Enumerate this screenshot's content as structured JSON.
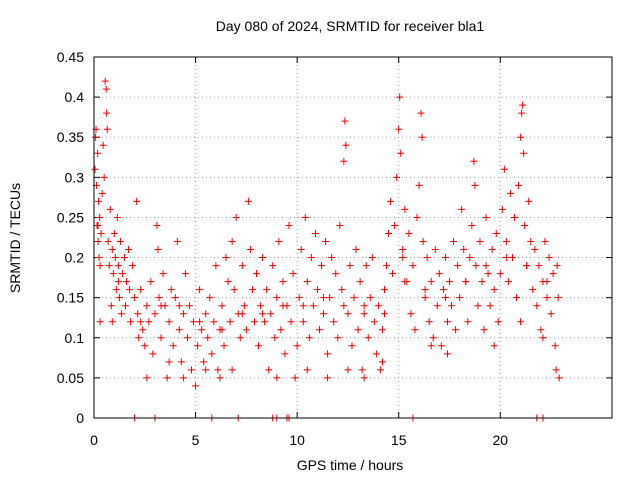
{
  "chart_data": {
    "type": "scatter",
    "title": "Day 080 of 2024, SRMTID for receiver bla1",
    "xlabel": "GPS time / hours",
    "ylabel": "SRMTID / TECUs",
    "xlim": [
      0,
      25.5
    ],
    "ylim": [
      0,
      0.45
    ],
    "x_ticks": [
      0,
      5,
      10,
      15,
      20
    ],
    "x_tick_labels": [
      "0",
      "5",
      "10",
      "15",
      "20"
    ],
    "y_ticks": [
      0,
      0.05,
      0.1,
      0.15,
      0.2,
      0.25,
      0.3,
      0.35,
      0.4,
      0.45
    ],
    "y_tick_labels": [
      "0",
      "0.05",
      "0.1",
      "0.15",
      "0.2",
      "0.25",
      "0.3",
      "0.35",
      "0.4",
      "0.45"
    ],
    "grid": true,
    "marker": "+",
    "color": "#ee0000",
    "series": [
      {
        "name": "SRMTID",
        "points": [
          [
            0.05,
            0.31
          ],
          [
            0.08,
            0.35
          ],
          [
            0.1,
            0.36
          ],
          [
            0.12,
            0.29
          ],
          [
            0.15,
            0.24
          ],
          [
            0.18,
            0.33
          ],
          [
            0.2,
            0.22
          ],
          [
            0.22,
            0.27
          ],
          [
            0.25,
            0.2
          ],
          [
            0.28,
            0.25
          ],
          [
            0.3,
            0.19
          ],
          [
            0.35,
            0.23
          ],
          [
            0.4,
            0.28
          ],
          [
            0.45,
            0.34
          ],
          [
            0.5,
            0.3
          ],
          [
            0.55,
            0.42
          ],
          [
            0.6,
            0.41
          ],
          [
            0.62,
            0.38
          ],
          [
            0.65,
            0.36
          ],
          [
            0.7,
            0.22
          ],
          [
            0.75,
            0.19
          ],
          [
            0.8,
            0.26
          ],
          [
            0.85,
            0.14
          ],
          [
            0.9,
            0.21
          ],
          [
            0.95,
            0.18
          ],
          [
            1.0,
            0.23
          ],
          [
            1.05,
            0.2
          ],
          [
            1.1,
            0.16
          ],
          [
            1.15,
            0.25
          ],
          [
            1.2,
            0.19
          ],
          [
            1.25,
            0.15
          ],
          [
            1.3,
            0.22
          ],
          [
            1.35,
            0.13
          ],
          [
            1.4,
            0.18
          ],
          [
            1.5,
            0.2
          ],
          [
            1.55,
            0.14
          ],
          [
            1.6,
            0.17
          ],
          [
            1.7,
            0.21
          ],
          [
            1.75,
            0.16
          ],
          [
            1.8,
            0.12
          ],
          [
            1.9,
            0.19
          ],
          [
            2.0,
            0.15
          ],
          [
            2.1,
            0.27
          ],
          [
            2.15,
            0.13
          ],
          [
            2.2,
            0.1
          ],
          [
            2.3,
            0.16
          ],
          [
            2.4,
            0.11
          ],
          [
            2.5,
            0.09
          ],
          [
            2.6,
            0.14
          ],
          [
            2.7,
            0.12
          ],
          [
            2.8,
            0.17
          ],
          [
            2.9,
            0.08
          ],
          [
            3.0,
            0.13
          ],
          [
            3.1,
            0.24
          ],
          [
            3.15,
            0.21
          ],
          [
            3.2,
            0.15
          ],
          [
            3.3,
            0.1
          ],
          [
            3.4,
            0.18
          ],
          [
            3.5,
            0.14
          ],
          [
            3.6,
            0.05
          ],
          [
            3.7,
            0.12
          ],
          [
            3.8,
            0.16
          ],
          [
            3.9,
            0.09
          ],
          [
            4.0,
            0.15
          ],
          [
            4.1,
            0.22
          ],
          [
            4.2,
            0.11
          ],
          [
            4.3,
            0.07
          ],
          [
            4.4,
            0.13
          ],
          [
            4.5,
            0.18
          ],
          [
            4.6,
            0.1
          ],
          [
            4.7,
            0.14
          ],
          [
            4.8,
            0.06
          ],
          [
            4.9,
            0.12
          ],
          [
            5.0,
            0.04
          ],
          [
            5.1,
            0.09
          ],
          [
            5.2,
            0.16
          ],
          [
            5.3,
            0.11
          ],
          [
            5.4,
            0.07
          ],
          [
            5.5,
            0.13
          ],
          [
            5.6,
            0.1
          ],
          [
            5.7,
            0.15
          ],
          [
            5.8,
            0.08
          ],
          [
            5.9,
            0.12
          ],
          [
            6.0,
            0.19
          ],
          [
            6.1,
            0.06
          ],
          [
            6.2,
            0.11
          ],
          [
            6.3,
            0.14
          ],
          [
            6.4,
            0.09
          ],
          [
            6.5,
            0.2
          ],
          [
            6.6,
            0.17
          ],
          [
            6.7,
            0.12
          ],
          [
            6.8,
            0.22
          ],
          [
            6.9,
            0.16
          ],
          [
            7.0,
            0.25
          ],
          [
            7.1,
            0.13
          ],
          [
            7.2,
            0.1
          ],
          [
            7.3,
            0.19
          ],
          [
            7.4,
            0.14
          ],
          [
            7.5,
            0.11
          ],
          [
            7.6,
            0.27
          ],
          [
            7.7,
            0.21
          ],
          [
            7.8,
            0.16
          ],
          [
            7.9,
            0.12
          ],
          [
            8.0,
            0.18
          ],
          [
            8.1,
            0.09
          ],
          [
            8.2,
            0.14
          ],
          [
            8.3,
            0.2
          ],
          [
            8.4,
            0.12
          ],
          [
            8.5,
            0.16
          ],
          [
            8.6,
            0.06
          ],
          [
            8.7,
            0.13
          ],
          [
            8.8,
            0.19
          ],
          [
            8.9,
            0.1
          ],
          [
            9.0,
            0.15
          ],
          [
            9.1,
            0.22
          ],
          [
            9.2,
            0.11
          ],
          [
            9.3,
            0.17
          ],
          [
            9.4,
            0.08
          ],
          [
            9.5,
            0.14
          ],
          [
            9.6,
            0.24
          ],
          [
            9.7,
            0.12
          ],
          [
            9.8,
            0.18
          ],
          [
            9.9,
            0.05
          ],
          [
            10.0,
            0.09
          ],
          [
            10.1,
            0.15
          ],
          [
            10.2,
            0.21
          ],
          [
            10.3,
            0.12
          ],
          [
            10.4,
            0.25
          ],
          [
            10.5,
            0.17
          ],
          [
            10.6,
            0.1
          ],
          [
            10.7,
            0.2
          ],
          [
            10.8,
            0.14
          ],
          [
            10.9,
            0.23
          ],
          [
            11.0,
            0.16
          ],
          [
            11.1,
            0.11
          ],
          [
            11.2,
            0.19
          ],
          [
            11.3,
            0.13
          ],
          [
            11.4,
            0.22
          ],
          [
            11.5,
            0.08
          ],
          [
            11.6,
            0.15
          ],
          [
            11.7,
            0.2
          ],
          [
            11.8,
            0.12
          ],
          [
            11.9,
            0.18
          ],
          [
            12.0,
            0.1
          ],
          [
            12.1,
            0.24
          ],
          [
            12.2,
            0.16
          ],
          [
            12.3,
            0.32
          ],
          [
            12.35,
            0.37
          ],
          [
            12.4,
            0.34
          ],
          [
            12.5,
            0.13
          ],
          [
            12.6,
            0.19
          ],
          [
            12.7,
            0.09
          ],
          [
            12.8,
            0.15
          ],
          [
            12.9,
            0.21
          ],
          [
            13.0,
            0.11
          ],
          [
            13.1,
            0.17
          ],
          [
            13.2,
            0.06
          ],
          [
            13.3,
            0.13
          ],
          [
            13.4,
            0.19
          ],
          [
            13.5,
            0.1
          ],
          [
            13.6,
            0.15
          ],
          [
            13.7,
            0.2
          ],
          [
            13.8,
            0.12
          ],
          [
            13.9,
            0.08
          ],
          [
            14.0,
            0.14
          ],
          [
            14.1,
            0.06
          ],
          [
            14.2,
            0.11
          ],
          [
            14.3,
            0.16
          ],
          [
            14.4,
            0.19
          ],
          [
            14.5,
            0.23
          ],
          [
            14.6,
            0.27
          ],
          [
            14.7,
            0.18
          ],
          [
            14.8,
            0.24
          ],
          [
            14.9,
            0.3
          ],
          [
            15.0,
            0.36
          ],
          [
            15.05,
            0.4
          ],
          [
            15.1,
            0.33
          ],
          [
            15.2,
            0.21
          ],
          [
            15.3,
            0.26
          ],
          [
            15.4,
            0.17
          ],
          [
            15.5,
            0.23
          ],
          [
            15.6,
            0.13
          ],
          [
            15.7,
            0.19
          ],
          [
            15.8,
            0.11
          ],
          [
            15.9,
            0.25
          ],
          [
            16.0,
            0.29
          ],
          [
            16.1,
            0.38
          ],
          [
            16.15,
            0.35
          ],
          [
            16.2,
            0.22
          ],
          [
            16.3,
            0.15
          ],
          [
            16.4,
            0.2
          ],
          [
            16.5,
            0.12
          ],
          [
            16.6,
            0.17
          ],
          [
            16.7,
            0.1
          ],
          [
            16.8,
            0.21
          ],
          [
            16.9,
            0.14
          ],
          [
            17.0,
            0.18
          ],
          [
            17.1,
            0.09
          ],
          [
            17.2,
            0.16
          ],
          [
            17.3,
            0.2
          ],
          [
            17.4,
            0.12
          ],
          [
            17.5,
            0.17
          ],
          [
            17.6,
            0.14
          ],
          [
            17.7,
            0.22
          ],
          [
            17.8,
            0.11
          ],
          [
            17.9,
            0.19
          ],
          [
            18.0,
            0.15
          ],
          [
            18.1,
            0.26
          ],
          [
            18.2,
            0.21
          ],
          [
            18.3,
            0.17
          ],
          [
            18.4,
            0.12
          ],
          [
            18.5,
            0.2
          ],
          [
            18.6,
            0.24
          ],
          [
            18.7,
            0.32
          ],
          [
            18.75,
            0.29
          ],
          [
            18.8,
            0.19
          ],
          [
            18.9,
            0.14
          ],
          [
            19.0,
            0.22
          ],
          [
            19.1,
            0.17
          ],
          [
            19.2,
            0.11
          ],
          [
            19.3,
            0.25
          ],
          [
            19.4,
            0.18
          ],
          [
            19.5,
            0.14
          ],
          [
            19.6,
            0.21
          ],
          [
            19.7,
            0.16
          ],
          [
            19.8,
            0.23
          ],
          [
            19.9,
            0.12
          ],
          [
            20.0,
            0.18
          ],
          [
            20.1,
            0.26
          ],
          [
            20.2,
            0.31
          ],
          [
            20.3,
            0.22
          ],
          [
            20.4,
            0.17
          ],
          [
            20.5,
            0.28
          ],
          [
            20.6,
            0.2
          ],
          [
            20.7,
            0.25
          ],
          [
            20.8,
            0.15
          ],
          [
            20.9,
            0.29
          ],
          [
            21.0,
            0.35
          ],
          [
            21.05,
            0.38
          ],
          [
            21.1,
            0.39
          ],
          [
            21.15,
            0.33
          ],
          [
            21.2,
            0.24
          ],
          [
            21.3,
            0.19
          ],
          [
            21.4,
            0.27
          ],
          [
            21.5,
            0.22
          ],
          [
            21.6,
            0.16
          ],
          [
            21.7,
            0.21
          ],
          [
            21.8,
            0.14
          ],
          [
            21.9,
            0.19
          ],
          [
            22.0,
            0.11
          ],
          [
            22.1,
            0.17
          ],
          [
            22.2,
            0.22
          ],
          [
            22.3,
            0.15
          ],
          [
            22.4,
            0.2
          ],
          [
            22.5,
            0.13
          ],
          [
            22.6,
            0.18
          ],
          [
            22.7,
            0.09
          ],
          [
            22.75,
            0.06
          ],
          [
            22.8,
            0.19
          ],
          [
            22.85,
            0.15
          ],
          [
            0.3,
            0.12
          ],
          [
            0.9,
            0.12
          ],
          [
            2.6,
            0.05
          ],
          [
            3.7,
            0.07
          ],
          [
            4.4,
            0.05
          ],
          [
            5.5,
            0.06
          ],
          [
            6.2,
            0.05
          ],
          [
            6.8,
            0.06
          ],
          [
            9.0,
            0.05
          ],
          [
            10.5,
            0.06
          ],
          [
            11.5,
            0.05
          ],
          [
            12.5,
            0.06
          ],
          [
            13.3,
            0.05
          ],
          [
            14.2,
            0.07
          ],
          [
            15.2,
            0.2
          ],
          [
            16.6,
            0.09
          ],
          [
            17.4,
            0.08
          ],
          [
            19.7,
            0.09
          ],
          [
            21.0,
            0.12
          ],
          [
            22.1,
            0.1
          ],
          [
            22.9,
            0.05
          ],
          [
            0.2,
            0.24
          ],
          [
            1.2,
            0.17
          ],
          [
            2.3,
            0.12
          ],
          [
            3.3,
            0.14
          ],
          [
            4.2,
            0.14
          ],
          [
            5.2,
            0.12
          ],
          [
            6.3,
            0.11
          ],
          [
            7.3,
            0.13
          ],
          [
            8.3,
            0.13
          ],
          [
            9.3,
            0.14
          ],
          [
            10.3,
            0.14
          ],
          [
            11.3,
            0.15
          ],
          [
            12.3,
            0.14
          ],
          [
            13.3,
            0.14
          ],
          [
            14.3,
            0.13
          ],
          [
            15.3,
            0.17
          ],
          [
            16.3,
            0.16
          ],
          [
            17.3,
            0.15
          ],
          [
            18.3,
            0.17
          ],
          [
            19.3,
            0.19
          ],
          [
            20.3,
            0.2
          ],
          [
            21.3,
            0.19
          ],
          [
            22.3,
            0.17
          ],
          [
            2.0,
            0.0
          ],
          [
            3.0,
            0.0
          ],
          [
            5.8,
            0.0
          ],
          [
            7.1,
            0.0
          ],
          [
            8.8,
            0.0
          ],
          [
            9.0,
            0.0
          ],
          [
            9.5,
            0.0
          ],
          [
            9.6,
            0.0
          ],
          [
            15.7,
            0.0
          ],
          [
            21.8,
            0.0
          ],
          [
            22.1,
            0.0
          ]
        ]
      }
    ]
  }
}
